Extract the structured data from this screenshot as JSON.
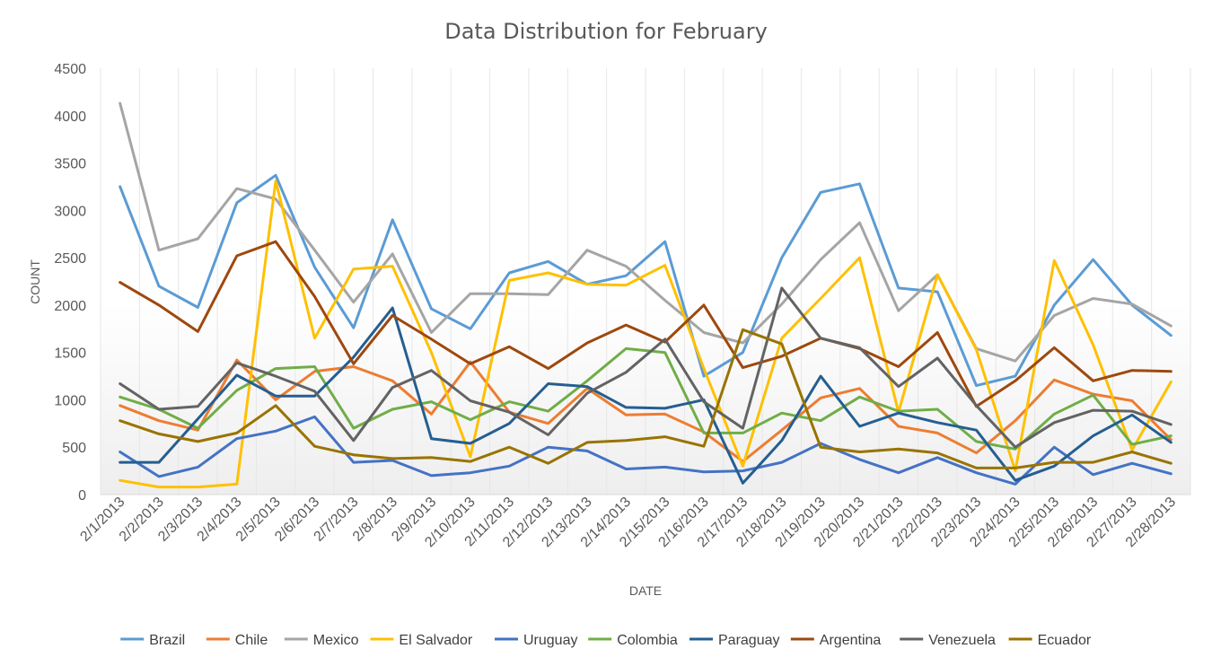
{
  "chart_data": {
    "type": "line",
    "title": "Data Distribution for February",
    "xlabel": "DATE",
    "ylabel": "COUNT",
    "ylim": [
      0,
      4500
    ],
    "yticks": [
      0,
      500,
      1000,
      1500,
      2000,
      2500,
      3000,
      3500,
      4000,
      4500
    ],
    "grid": "vertical",
    "legend": "bottom",
    "categories": [
      "2/1/2013",
      "2/2/2013",
      "2/3/2013",
      "2/4/2013",
      "2/5/2013",
      "2/6/2013",
      "2/7/2013",
      "2/8/2013",
      "2/9/2013",
      "2/10/2013",
      "2/11/2013",
      "2/12/2013",
      "2/13/2013",
      "2/14/2013",
      "2/15/2013",
      "2/16/2013",
      "2/17/2013",
      "2/18/2013",
      "2/19/2013",
      "2/20/2013",
      "2/21/2013",
      "2/22/2013",
      "2/23/2013",
      "2/24/2013",
      "2/25/2013",
      "2/26/2013",
      "2/27/2013",
      "2/28/2013"
    ],
    "series": [
      {
        "name": "Brazil",
        "color": "#5b9bd5",
        "values": [
          3250,
          2200,
          1975,
          3080,
          3370,
          2400,
          1760,
          2900,
          1960,
          1750,
          2340,
          2460,
          2220,
          2310,
          2670,
          1250,
          1500,
          2500,
          3190,
          3280,
          2180,
          2140,
          1150,
          1250,
          2000,
          2480,
          2000,
          1680
        ]
      },
      {
        "name": "Chile",
        "color": "#ed7d31",
        "values": [
          940,
          780,
          680,
          1420,
          1000,
          1300,
          1350,
          1200,
          850,
          1400,
          870,
          750,
          1120,
          840,
          850,
          660,
          350,
          680,
          1020,
          1120,
          720,
          650,
          440,
          780,
          1210,
          1060,
          990,
          580
        ]
      },
      {
        "name": "Mexico",
        "color": "#a5a5a5",
        "values": [
          4130,
          2580,
          2700,
          3230,
          3120,
          2580,
          2030,
          2540,
          1710,
          2120,
          2120,
          2110,
          2580,
          2410,
          2050,
          1710,
          1600,
          2010,
          2480,
          2870,
          1940,
          2320,
          1540,
          1410,
          1890,
          2070,
          2010,
          1780
        ]
      },
      {
        "name": "El Salvador",
        "color": "#ffc000",
        "values": [
          150,
          80,
          80,
          110,
          3310,
          1650,
          2380,
          2410,
          1500,
          400,
          2260,
          2340,
          2220,
          2210,
          2420,
          1330,
          300,
          1650,
          2070,
          2500,
          870,
          2320,
          1530,
          250,
          2470,
          1580,
          470,
          1190
        ]
      },
      {
        "name": "Uruguay",
        "color": "#4472c4",
        "values": [
          450,
          190,
          290,
          590,
          670,
          820,
          340,
          360,
          200,
          230,
          300,
          500,
          460,
          270,
          290,
          240,
          250,
          340,
          540,
          370,
          230,
          390,
          230,
          110,
          500,
          210,
          330,
          220
        ]
      },
      {
        "name": "Colombia",
        "color": "#70ad47",
        "values": [
          1030,
          900,
          700,
          1100,
          1330,
          1350,
          700,
          900,
          980,
          790,
          980,
          880,
          1200,
          1540,
          1500,
          650,
          650,
          860,
          780,
          1030,
          880,
          900,
          560,
          480,
          850,
          1050,
          530,
          620
        ]
      },
      {
        "name": "Paraguay",
        "color": "#255e91",
        "values": [
          340,
          340,
          800,
          1260,
          1040,
          1040,
          1450,
          1970,
          590,
          540,
          750,
          1170,
          1140,
          920,
          910,
          1000,
          120,
          570,
          1250,
          720,
          860,
          760,
          680,
          150,
          300,
          620,
          840,
          550
        ]
      },
      {
        "name": "Argentina",
        "color": "#9e480e",
        "values": [
          2240,
          2000,
          1720,
          2520,
          2670,
          2090,
          1380,
          1890,
          1640,
          1380,
          1560,
          1330,
          1600,
          1790,
          1610,
          2000,
          1340,
          1460,
          1650,
          1540,
          1350,
          1710,
          930,
          1200,
          1550,
          1200,
          1310,
          1300
        ]
      },
      {
        "name": "Venezuela",
        "color": "#636363",
        "values": [
          1170,
          900,
          930,
          1390,
          1250,
          1090,
          570,
          1130,
          1310,
          990,
          870,
          630,
          1070,
          1290,
          1640,
          980,
          700,
          2180,
          1650,
          1550,
          1140,
          1440,
          940,
          500,
          760,
          890,
          880,
          740
        ]
      },
      {
        "name": "Ecuador",
        "color": "#997300",
        "values": [
          780,
          640,
          560,
          650,
          940,
          510,
          420,
          380,
          390,
          350,
          500,
          330,
          550,
          570,
          610,
          510,
          1740,
          1590,
          500,
          450,
          480,
          440,
          280,
          280,
          340,
          340,
          450,
          330
        ]
      }
    ]
  }
}
